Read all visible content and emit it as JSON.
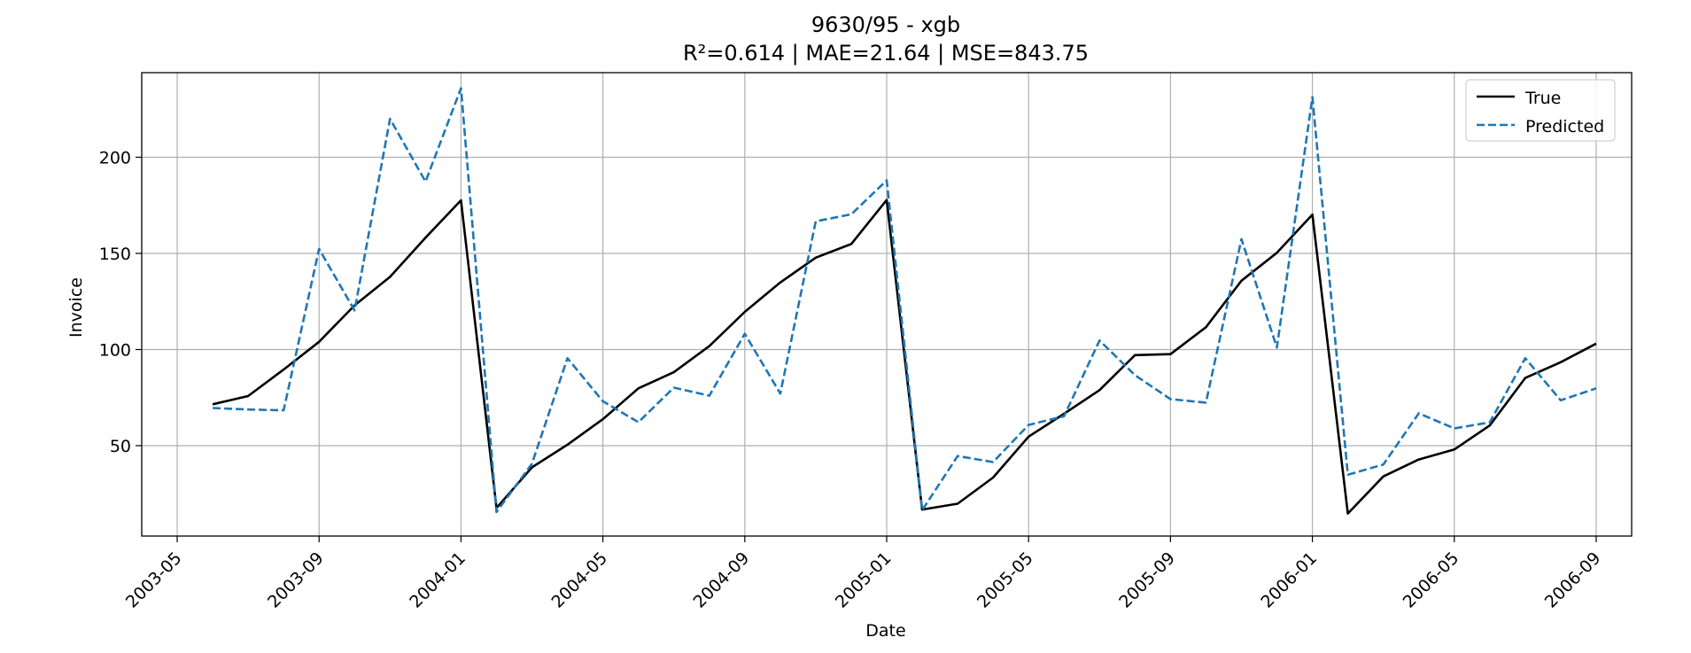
{
  "chart_data": {
    "type": "line",
    "title": "9630/95 - xgb",
    "subtitle": "R²=0.614 | MAE=21.64 | MSE=843.75",
    "xlabel": "Date",
    "ylabel": "Invoice",
    "x_tick_labels": [
      "2003-05",
      "2003-09",
      "2004-01",
      "2004-05",
      "2004-09",
      "2005-01",
      "2005-05",
      "2005-09",
      "2006-01",
      "2006-05",
      "2006-09"
    ],
    "y_ticks": [
      50,
      100,
      150,
      200
    ],
    "xlim": [
      "2003-04",
      "2006-10"
    ],
    "ylim": [
      3,
      244
    ],
    "grid": true,
    "legend_position": "top-right",
    "x": [
      "2003-06",
      "2003-07",
      "2003-08",
      "2003-09",
      "2003-10",
      "2003-11",
      "2003-12",
      "2004-01",
      "2004-02",
      "2004-03",
      "2004-04",
      "2004-05",
      "2004-06",
      "2004-07",
      "2004-08",
      "2004-09",
      "2004-10",
      "2004-11",
      "2004-12",
      "2005-01",
      "2005-02",
      "2005-03",
      "2005-04",
      "2005-05",
      "2005-06",
      "2005-07",
      "2005-08",
      "2005-09",
      "2005-10",
      "2005-11",
      "2005-12",
      "2006-01",
      "2006-02",
      "2006-03",
      "2006-04",
      "2006-05",
      "2006-06",
      "2006-07",
      "2006-08",
      "2006-09"
    ],
    "series": [
      {
        "name": "True",
        "color": "#000000",
        "style": "solid",
        "values": [
          71.5,
          75.8,
          89.6,
          104,
          123,
          137.8,
          158.2,
          177.6,
          17.6,
          38.7,
          50.5,
          63.8,
          79.8,
          88.2,
          101.8,
          119.6,
          134.9,
          147.8,
          154.9,
          177.8,
          16.8,
          19.8,
          33.4,
          54.7,
          66.6,
          78.9,
          97.1,
          97.6,
          111.6,
          135.8,
          150.3,
          170.2,
          14.7,
          34,
          42.8,
          48,
          60.5,
          85.2,
          93.4,
          103.1
        ]
      },
      {
        "name": "Predicted",
        "color": "#1f77b4",
        "style": "dashed",
        "values": [
          69.6,
          68.8,
          68.4,
          152.3,
          120.3,
          220,
          187.3,
          235.9,
          15.5,
          40.6,
          95.5,
          73.1,
          62.2,
          80.2,
          76,
          108.2,
          77.1,
          166.7,
          170.3,
          188,
          16.4,
          44.6,
          41.5,
          60.8,
          65.3,
          104.7,
          86.7,
          74.2,
          72.4,
          157.4,
          101,
          231.3,
          34.9,
          40.2,
          66.8,
          59,
          62.1,
          95.5,
          73.6,
          79.8
        ]
      }
    ]
  }
}
